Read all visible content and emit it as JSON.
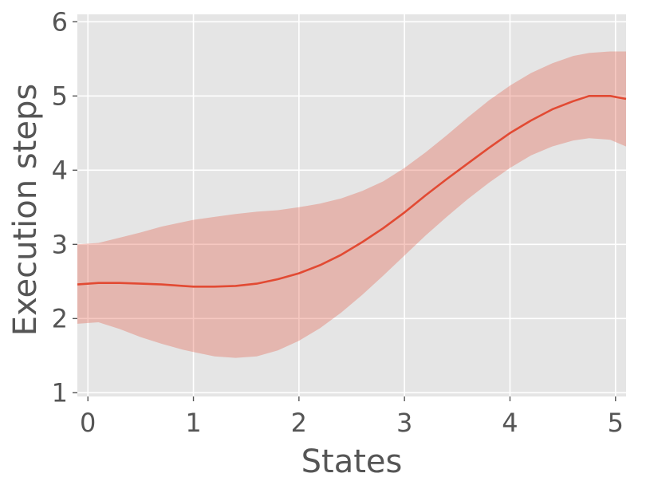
{
  "chart_data": {
    "type": "line",
    "title": "",
    "xlabel": "States",
    "ylabel": "Execution steps",
    "xlim": [
      -0.1,
      5.1
    ],
    "ylim": [
      0.95,
      6.1
    ],
    "xticks": [
      0,
      1,
      2,
      3,
      4,
      5
    ],
    "yticks": [
      1,
      2,
      3,
      4,
      5,
      6
    ],
    "xtick_labels": [
      "0",
      "1",
      "2",
      "3",
      "4",
      "5"
    ],
    "ytick_labels": [
      "1",
      "2",
      "3",
      "4",
      "5",
      "6"
    ],
    "grid": true,
    "legend": "none",
    "colors": {
      "plot_background": "#e5e5e5",
      "grid": "#ffffff",
      "line": "#e24a33",
      "band": "#e24a33",
      "text": "#555555"
    },
    "series": [
      {
        "x": [
          -0.1,
          0.1,
          0.3,
          0.5,
          0.7,
          0.9,
          1.0,
          1.2,
          1.4,
          1.6,
          1.8,
          2.0,
          2.2,
          2.4,
          2.6,
          2.8,
          3.0,
          3.2,
          3.4,
          3.6,
          3.8,
          4.0,
          4.2,
          4.4,
          4.6,
          4.75,
          4.95,
          5.1
        ],
        "y": [
          2.46,
          2.48,
          2.48,
          2.47,
          2.46,
          2.44,
          2.43,
          2.43,
          2.44,
          2.47,
          2.53,
          2.61,
          2.72,
          2.86,
          3.03,
          3.22,
          3.43,
          3.66,
          3.88,
          4.09,
          4.3,
          4.5,
          4.67,
          4.82,
          4.93,
          5.0,
          5.0,
          4.96
        ],
        "lower": [
          1.93,
          1.95,
          1.86,
          1.75,
          1.66,
          1.58,
          1.55,
          1.49,
          1.47,
          1.49,
          1.57,
          1.7,
          1.87,
          2.08,
          2.32,
          2.58,
          2.85,
          3.12,
          3.37,
          3.61,
          3.83,
          4.03,
          4.2,
          4.32,
          4.4,
          4.43,
          4.41,
          4.32
        ],
        "upper": [
          3.0,
          3.02,
          3.09,
          3.16,
          3.24,
          3.3,
          3.33,
          3.37,
          3.41,
          3.44,
          3.46,
          3.5,
          3.55,
          3.62,
          3.72,
          3.85,
          4.03,
          4.24,
          4.47,
          4.71,
          4.94,
          5.14,
          5.31,
          5.44,
          5.54,
          5.58,
          5.6,
          5.6
        ]
      }
    ]
  }
}
